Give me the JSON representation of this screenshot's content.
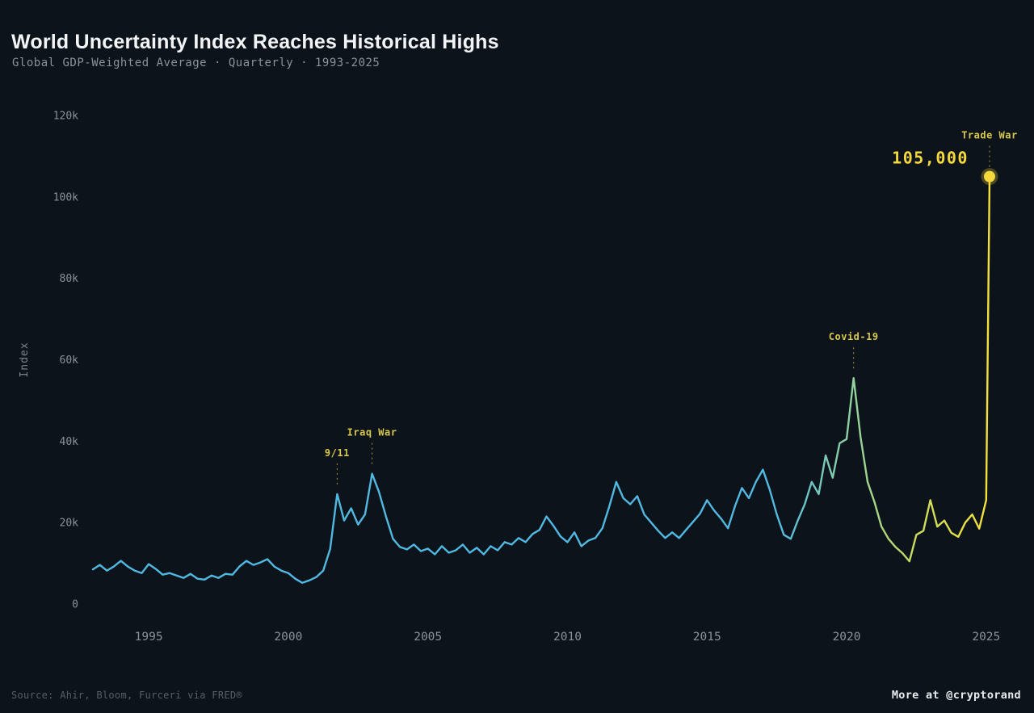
{
  "header": {
    "title": "World Uncertainty Index Reaches Historical Highs",
    "subtitle": "Global GDP-Weighted Average · Quarterly · 1993-2025"
  },
  "footer": {
    "source": "Source: Ahir, Bloom, Furceri via FRED®",
    "credit": "More at @cryptorand"
  },
  "chart_data": {
    "type": "line",
    "title": "World Uncertainty Index Reaches Historical Highs",
    "subtitle": "Global GDP-Weighted Average · Quarterly · 1993-2025",
    "xlabel": "",
    "ylabel": "Index",
    "grid": false,
    "legend": "none",
    "xlim": [
      1993,
      2025.15
    ],
    "ylim": [
      0,
      120000
    ],
    "x_ticks": [
      1995,
      2000,
      2005,
      2010,
      2015,
      2020,
      2025
    ],
    "x_tick_labels": [
      "1995",
      "2000",
      "2005",
      "2010",
      "2015",
      "2020",
      "2025"
    ],
    "y_ticks": [
      0,
      20000,
      40000,
      60000,
      80000,
      100000,
      120000
    ],
    "y_tick_labels": [
      "0",
      "20k",
      "40k",
      "60k",
      "80k",
      "100k",
      "120k"
    ],
    "colors": {
      "background": "#0d131b",
      "line_start": "#50b9e2",
      "line_mid": "#8fd2a0",
      "line_late": "#c6dc62",
      "line_end": "#f4e13a",
      "annotation": "#d8c84d",
      "marker": "#f5d93c",
      "axis_text": "#8a929b",
      "ylabel_text": "#7d858e"
    },
    "series": [
      {
        "name": "World Uncertainty Index (GDP-weighted)",
        "points": [
          [
            1993.0,
            8500
          ],
          [
            1993.25,
            9600
          ],
          [
            1993.5,
            8200
          ],
          [
            1993.75,
            9200
          ],
          [
            1994.0,
            10600
          ],
          [
            1994.25,
            9200
          ],
          [
            1994.5,
            8200
          ],
          [
            1994.75,
            7600
          ],
          [
            1995.0,
            9800
          ],
          [
            1995.25,
            8600
          ],
          [
            1995.5,
            7200
          ],
          [
            1995.75,
            7600
          ],
          [
            1996.0,
            7000
          ],
          [
            1996.25,
            6400
          ],
          [
            1996.5,
            7400
          ],
          [
            1996.75,
            6200
          ],
          [
            1997.0,
            6000
          ],
          [
            1997.25,
            7000
          ],
          [
            1997.5,
            6400
          ],
          [
            1997.75,
            7400
          ],
          [
            1998.0,
            7200
          ],
          [
            1998.25,
            9200
          ],
          [
            1998.5,
            10600
          ],
          [
            1998.75,
            9600
          ],
          [
            1999.0,
            10200
          ],
          [
            1999.25,
            11000
          ],
          [
            1999.5,
            9200
          ],
          [
            1999.75,
            8200
          ],
          [
            2000.0,
            7600
          ],
          [
            2000.25,
            6200
          ],
          [
            2000.5,
            5200
          ],
          [
            2000.75,
            5800
          ],
          [
            2001.0,
            6600
          ],
          [
            2001.25,
            8200
          ],
          [
            2001.5,
            13500
          ],
          [
            2001.75,
            27000
          ],
          [
            2002.0,
            20500
          ],
          [
            2002.25,
            23500
          ],
          [
            2002.5,
            19500
          ],
          [
            2002.75,
            22000
          ],
          [
            2003.0,
            32000
          ],
          [
            2003.25,
            27500
          ],
          [
            2003.5,
            21500
          ],
          [
            2003.75,
            16000
          ],
          [
            2004.0,
            14000
          ],
          [
            2004.25,
            13400
          ],
          [
            2004.5,
            14600
          ],
          [
            2004.75,
            13000
          ],
          [
            2005.0,
            13600
          ],
          [
            2005.25,
            12200
          ],
          [
            2005.5,
            14200
          ],
          [
            2005.75,
            12600
          ],
          [
            2006.0,
            13200
          ],
          [
            2006.25,
            14600
          ],
          [
            2006.5,
            12600
          ],
          [
            2006.75,
            13800
          ],
          [
            2007.0,
            12200
          ],
          [
            2007.25,
            14200
          ],
          [
            2007.5,
            13200
          ],
          [
            2007.75,
            15200
          ],
          [
            2008.0,
            14600
          ],
          [
            2008.25,
            16200
          ],
          [
            2008.5,
            15200
          ],
          [
            2008.75,
            17200
          ],
          [
            2009.0,
            18200
          ],
          [
            2009.25,
            21500
          ],
          [
            2009.5,
            19200
          ],
          [
            2009.75,
            16600
          ],
          [
            2010.0,
            15200
          ],
          [
            2010.25,
            17600
          ],
          [
            2010.5,
            14200
          ],
          [
            2010.75,
            15600
          ],
          [
            2011.0,
            16200
          ],
          [
            2011.25,
            18600
          ],
          [
            2011.5,
            24000
          ],
          [
            2011.75,
            30000
          ],
          [
            2012.0,
            26000
          ],
          [
            2012.25,
            24500
          ],
          [
            2012.5,
            26500
          ],
          [
            2012.75,
            22000
          ],
          [
            2013.0,
            20000
          ],
          [
            2013.25,
            18000
          ],
          [
            2013.5,
            16200
          ],
          [
            2013.75,
            17600
          ],
          [
            2014.0,
            16200
          ],
          [
            2014.25,
            18200
          ],
          [
            2014.5,
            20200
          ],
          [
            2014.75,
            22200
          ],
          [
            2015.0,
            25500
          ],
          [
            2015.25,
            23000
          ],
          [
            2015.5,
            21000
          ],
          [
            2015.75,
            18600
          ],
          [
            2016.0,
            24000
          ],
          [
            2016.25,
            28500
          ],
          [
            2016.5,
            26000
          ],
          [
            2016.75,
            30000
          ],
          [
            2017.0,
            33000
          ],
          [
            2017.25,
            28000
          ],
          [
            2017.5,
            22000
          ],
          [
            2017.75,
            17000
          ],
          [
            2018.0,
            16000
          ],
          [
            2018.25,
            20500
          ],
          [
            2018.5,
            24500
          ],
          [
            2018.75,
            30000
          ],
          [
            2019.0,
            27000
          ],
          [
            2019.25,
            36500
          ],
          [
            2019.5,
            31000
          ],
          [
            2019.75,
            39500
          ],
          [
            2020.0,
            40500
          ],
          [
            2020.25,
            55500
          ],
          [
            2020.5,
            41000
          ],
          [
            2020.75,
            30000
          ],
          [
            2021.0,
            25000
          ],
          [
            2021.25,
            19000
          ],
          [
            2021.5,
            16000
          ],
          [
            2021.75,
            14000
          ],
          [
            2022.0,
            12500
          ],
          [
            2022.25,
            10500
          ],
          [
            2022.5,
            17000
          ],
          [
            2022.75,
            18000
          ],
          [
            2023.0,
            25500
          ],
          [
            2023.25,
            19000
          ],
          [
            2023.5,
            20500
          ],
          [
            2023.75,
            17500
          ],
          [
            2024.0,
            16500
          ],
          [
            2024.25,
            20000
          ],
          [
            2024.5,
            22000
          ],
          [
            2024.75,
            18500
          ],
          [
            2025.0,
            25500
          ],
          [
            2025.12,
            105000
          ]
        ]
      }
    ],
    "annotations": [
      {
        "label": "9/11",
        "x": 2001.75,
        "y": 27000
      },
      {
        "label": "Iraq War",
        "x": 2003.0,
        "y": 32000
      },
      {
        "label": "Covid-19",
        "x": 2020.25,
        "y": 55500
      },
      {
        "label": "Trade War",
        "x": 2025.12,
        "y": 105000,
        "value_label": "105,000",
        "marker": true
      }
    ]
  }
}
